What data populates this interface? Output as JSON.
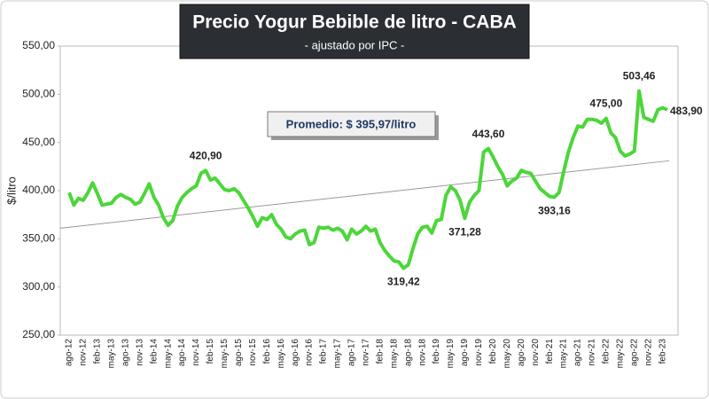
{
  "chart_data": {
    "type": "line",
    "title": "Precio Yogur Bebible de litro - CABA",
    "subtitle": "- ajustado por IPC -",
    "y_label": "$/litro",
    "annotation": "Promedio: $ 395,97/litro",
    "categories": [
      "ago-12",
      null,
      null,
      "nov-12",
      null,
      null,
      "feb-13",
      null,
      null,
      "may-13",
      null,
      null,
      "ago-13",
      null,
      null,
      "nov-13",
      null,
      null,
      "feb-14",
      null,
      null,
      "may-14",
      null,
      null,
      "ago-14",
      null,
      null,
      "nov-14",
      null,
      null,
      "feb-15",
      null,
      null,
      "may-15",
      null,
      null,
      "ago-15",
      null,
      null,
      "nov-15",
      null,
      null,
      "feb-16",
      null,
      null,
      "may-16",
      null,
      null,
      "ago-16",
      null,
      null,
      "nov-16",
      null,
      null,
      "feb-17",
      null,
      null,
      "may-17",
      null,
      null,
      "ago-17",
      null,
      null,
      "nov-17",
      null,
      null,
      "feb-18",
      null,
      null,
      "may-18",
      null,
      null,
      "ago-18",
      null,
      null,
      "nov-18",
      null,
      null,
      "feb-19",
      null,
      null,
      "may-19",
      null,
      null,
      "ago-19",
      null,
      null,
      "nov-19",
      null,
      null,
      "feb-20",
      null,
      null,
      "may-20",
      null,
      null,
      "ago-20",
      null,
      null,
      "nov-20",
      null,
      null,
      "feb-21",
      null,
      null,
      "may-21",
      null,
      null,
      "ago-21",
      null,
      null,
      "nov-21",
      null,
      null,
      "feb-22",
      null,
      null,
      "may-22",
      null,
      null,
      "ago-22",
      null,
      null,
      "nov-22",
      null,
      null,
      "feb-23",
      null
    ],
    "series": [
      {
        "color": "#4cd63a",
        "values": [
          398,
          385,
          392,
          390,
          398,
          408,
          397,
          385,
          386,
          387,
          393,
          396,
          393,
          391,
          386,
          388,
          397,
          407,
          393,
          385,
          372,
          364,
          369,
          384,
          393,
          398,
          402,
          405,
          418,
          420.9,
          411,
          413,
          407,
          401,
          400,
          402,
          398,
          390,
          382,
          373,
          363,
          372,
          370,
          375,
          365,
          360,
          352,
          350,
          355,
          358,
          359,
          344,
          346,
          362,
          361,
          362,
          359,
          361,
          358,
          349,
          360,
          355,
          358,
          363,
          358,
          360,
          346,
          338,
          332,
          327,
          326,
          319.42,
          323,
          340,
          355,
          362,
          363,
          356,
          369,
          370,
          395,
          404,
          400,
          390,
          371.28,
          388,
          395,
          400,
          440,
          443.6,
          435,
          425,
          417,
          405,
          410,
          413,
          421,
          419,
          418,
          410,
          402,
          398,
          394,
          393.16,
          398,
          420,
          440,
          455,
          467,
          466,
          474,
          474,
          473,
          470,
          475,
          460,
          455,
          441,
          436,
          438,
          441,
          503.46,
          476,
          474,
          472,
          484,
          486,
          483.9
        ],
        "value_labels": [
          null,
          null,
          null,
          null,
          null,
          null,
          null,
          null,
          null,
          null,
          null,
          null,
          null,
          null,
          null,
          null,
          null,
          null,
          null,
          null,
          null,
          null,
          null,
          null,
          null,
          null,
          null,
          null,
          null,
          "420,90",
          null,
          null,
          null,
          null,
          null,
          null,
          null,
          null,
          null,
          null,
          null,
          null,
          null,
          null,
          null,
          null,
          null,
          null,
          null,
          null,
          null,
          null,
          null,
          null,
          null,
          null,
          null,
          null,
          null,
          null,
          null,
          null,
          null,
          null,
          null,
          null,
          null,
          null,
          null,
          null,
          null,
          "319,42",
          null,
          null,
          null,
          null,
          null,
          null,
          null,
          null,
          null,
          null,
          null,
          null,
          "371,28",
          null,
          null,
          null,
          null,
          "443,60",
          null,
          null,
          null,
          null,
          null,
          null,
          null,
          null,
          null,
          null,
          null,
          null,
          null,
          "393,16",
          null,
          null,
          null,
          null,
          null,
          null,
          null,
          null,
          null,
          null,
          "475,00",
          null,
          null,
          null,
          null,
          null,
          null,
          "503,46",
          null,
          null,
          null,
          null,
          null,
          "483,90"
        ]
      }
    ],
    "trendline": {
      "start": 361,
      "end": 431,
      "color": "#999999"
    },
    "ylim": [
      250,
      550
    ],
    "yticks": [
      {
        "value": 250,
        "label": "250,00"
      },
      {
        "value": 300,
        "label": "300,00"
      },
      {
        "value": 350,
        "label": "350,00"
      },
      {
        "value": 400,
        "label": "400,00"
      },
      {
        "value": 450,
        "label": "450,00"
      },
      {
        "value": 500,
        "label": "500,00"
      },
      {
        "value": 550,
        "label": "550,00"
      }
    ]
  }
}
